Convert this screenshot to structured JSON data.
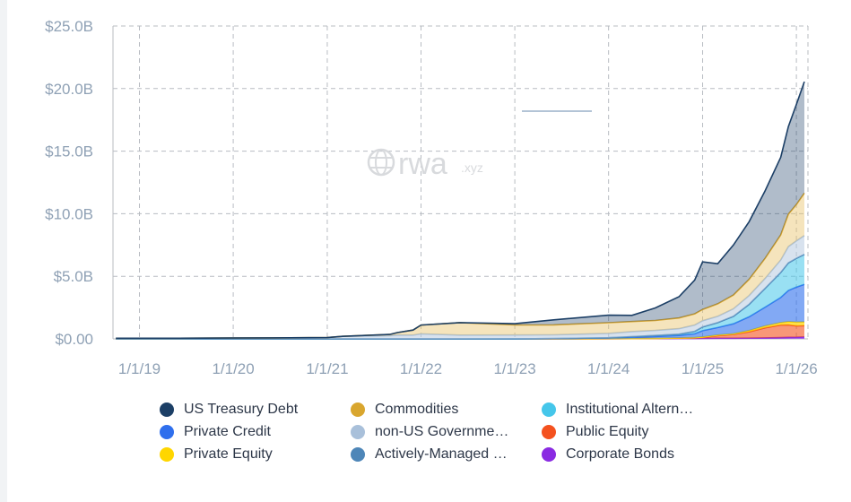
{
  "chart_data": {
    "type": "area",
    "title": "",
    "xlabel": "",
    "ylabel": "",
    "x_ticks": [
      "1/1/19",
      "1/1/20",
      "1/1/21",
      "1/1/22",
      "1/1/23",
      "1/1/24",
      "1/1/25",
      "1/1/26"
    ],
    "y_ticks": [
      "$0.00",
      "$5.0B",
      "$10.0B",
      "$15.0B",
      "$20.0B",
      "$25.0B"
    ],
    "ylim": [
      0,
      25
    ],
    "y_unit": "B USD",
    "grid": true,
    "legend_position": "bottom",
    "stacked": true,
    "x": [
      "2018-10-01",
      "2019-06-01",
      "2020-06-01",
      "2021-01-01",
      "2021-03-01",
      "2021-09-01",
      "2021-10-01",
      "2021-12-01",
      "2022-01-01",
      "2022-06-01",
      "2023-01-01",
      "2023-06-01",
      "2024-01-01",
      "2024-04-01",
      "2024-07-01",
      "2024-10-01",
      "2024-12-01",
      "2025-01-01",
      "2025-03-01",
      "2025-05-01",
      "2025-07-01",
      "2025-09-01",
      "2025-11-01",
      "2025-12-01",
      "2026-01-01",
      "2026-02-01"
    ],
    "series": [
      {
        "name": "Corporate Bonds",
        "color": "#8a2be2",
        "values": [
          0,
          0,
          0,
          0,
          0,
          0,
          0,
          0,
          0,
          0,
          0,
          0,
          0.01,
          0.02,
          0.02,
          0.03,
          0.03,
          0.04,
          0.05,
          0.05,
          0.06,
          0.08,
          0.1,
          0.12,
          0.13,
          0.15
        ]
      },
      {
        "name": "Public Equity",
        "color": "#f4511e",
        "values": [
          0,
          0,
          0,
          0,
          0,
          0,
          0,
          0,
          0,
          0,
          0,
          0,
          0.01,
          0.01,
          0.02,
          0.03,
          0.05,
          0.08,
          0.2,
          0.3,
          0.5,
          0.8,
          1.0,
          1.0,
          0.9,
          0.9
        ]
      },
      {
        "name": "Private Equity",
        "color": "#ffd600",
        "values": [
          0,
          0,
          0,
          0,
          0,
          0,
          0,
          0,
          0,
          0,
          0,
          0,
          0,
          0,
          0,
          0.01,
          0.02,
          0.03,
          0.05,
          0.05,
          0.1,
          0.15,
          0.2,
          0.25,
          0.3,
          0.3
        ]
      },
      {
        "name": "Private Credit",
        "color": "#2f6fed",
        "values": [
          0,
          0,
          0,
          0,
          0,
          0,
          0,
          0,
          0,
          0,
          0.01,
          0.02,
          0.05,
          0.1,
          0.15,
          0.2,
          0.3,
          0.5,
          0.6,
          0.8,
          1.1,
          1.5,
          2.0,
          2.5,
          2.8,
          3.0
        ]
      },
      {
        "name": "Institutional Alternative Funds",
        "color": "#45c6ea",
        "values": [
          0,
          0,
          0,
          0,
          0,
          0,
          0,
          0,
          0,
          0,
          0,
          0,
          0.02,
          0.05,
          0.08,
          0.1,
          0.2,
          0.3,
          0.4,
          0.6,
          1.0,
          1.5,
          2.0,
          2.2,
          2.3,
          2.4
        ]
      },
      {
        "name": "Actively-Managed Strategies",
        "color": "#4e86b8",
        "values": [
          0,
          0,
          0,
          0,
          0,
          0,
          0,
          0,
          0,
          0,
          0,
          0,
          0,
          0,
          0,
          0,
          0,
          0,
          0,
          0,
          0,
          0,
          0,
          0,
          0,
          0
        ]
      },
      {
        "name": "non-US Government Debt",
        "color": "#a9c0da",
        "values": [
          0.05,
          0.05,
          0.08,
          0.1,
          0.2,
          0.25,
          0.3,
          0.3,
          0.4,
          0.3,
          0.3,
          0.3,
          0.35,
          0.4,
          0.4,
          0.45,
          0.5,
          0.5,
          0.5,
          0.6,
          0.7,
          0.8,
          1.0,
          1.3,
          1.4,
          1.5
        ]
      },
      {
        "name": "Commodities",
        "color": "#d9a62e",
        "values": [
          0,
          0,
          0,
          0,
          0,
          0.1,
          0.2,
          0.4,
          0.7,
          1.0,
          0.8,
          0.8,
          0.85,
          0.8,
          0.8,
          0.85,
          0.9,
          0.9,
          1.0,
          1.1,
          1.3,
          1.6,
          2.0,
          2.6,
          2.9,
          3.4
        ]
      },
      {
        "name": "US Treasury Debt",
        "color": "#1c3f66",
        "values": [
          0,
          0,
          0,
          0,
          0,
          0,
          0,
          0,
          0,
          0,
          0.1,
          0.4,
          0.6,
          0.5,
          1.0,
          1.7,
          2.7,
          3.8,
          3.2,
          4.0,
          4.6,
          5.4,
          6.2,
          7.0,
          8.0,
          8.9
        ]
      }
    ],
    "legend": [
      {
        "name": "US Treasury Debt",
        "color": "#1c3f66"
      },
      {
        "name": "Commodities",
        "color": "#d9a62e"
      },
      {
        "name": "Institutional Altern…",
        "color": "#45c6ea"
      },
      {
        "name": "Private Credit",
        "color": "#2f6fed"
      },
      {
        "name": "non-US Governme…",
        "color": "#a9c0da"
      },
      {
        "name": "Public Equity",
        "color": "#f4511e"
      },
      {
        "name": "Private Equity",
        "color": "#ffd600"
      },
      {
        "name": "Actively-Managed …",
        "color": "#4e86b8"
      },
      {
        "name": "Corporate Bonds",
        "color": "#8a2be2"
      }
    ]
  },
  "watermark": {
    "brand": "rwa",
    "suffix": ".xyz"
  },
  "colors": {
    "grid": "#b8bcc2",
    "axis_text": "#8fa1b5",
    "background": "#ffffff"
  }
}
